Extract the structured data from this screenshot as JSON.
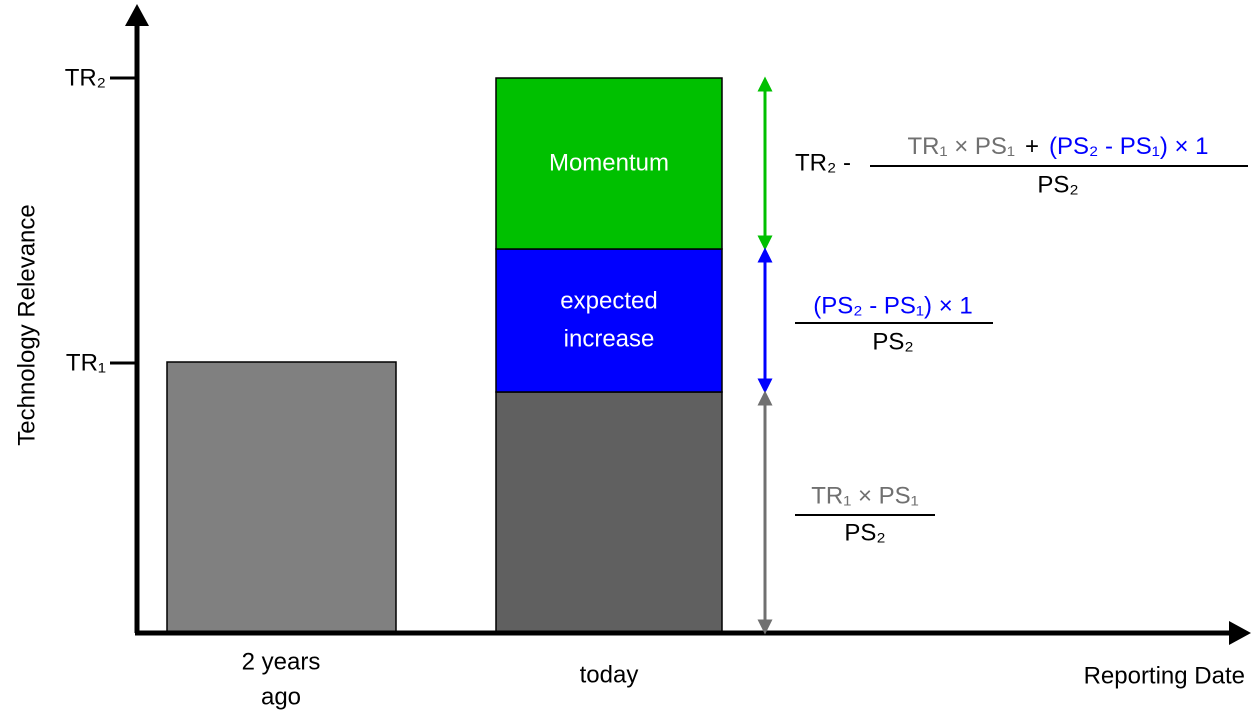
{
  "axes": {
    "y_label": "Technology Relevance",
    "x_label": "Reporting Date",
    "y_ticks": [
      "TR₂",
      "TR₁"
    ]
  },
  "x_labels": [
    [
      "2 years",
      "ago"
    ],
    [
      "today"
    ]
  ],
  "segments": {
    "momentum": [
      "Momentum"
    ],
    "expected_increase": [
      "expected",
      "increase"
    ]
  },
  "formulas": [
    {
      "prefix": "TR₂ -",
      "numerator": [
        "TR₁ × PS₁",
        "+",
        "(PS₂ - PS₁) × 1"
      ],
      "denominator": "PS₂"
    },
    {
      "numerator": [
        "(PS₂ - PS₁) × 1"
      ],
      "denominator": "PS₂"
    },
    {
      "numerator": [
        "TR₁ × PS₁"
      ],
      "denominator": "PS₂"
    }
  ]
}
